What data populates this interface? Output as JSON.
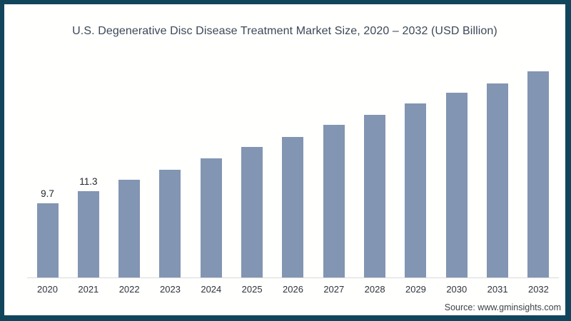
{
  "frame": {
    "border_color": "#11455c",
    "background": "#fffffe"
  },
  "title": "U.S. Degenerative Disc Disease Treatment Market Size, 2020 – 2032 (USD Billion)",
  "source": "Source: www.gminsights.com",
  "chart_data": {
    "type": "bar",
    "title": "U.S. Degenerative Disc Disease Treatment Market Size, 2020 – 2032 (USD Billion)",
    "categories": [
      "2020",
      "2021",
      "2022",
      "2023",
      "2024",
      "2025",
      "2026",
      "2027",
      "2028",
      "2029",
      "2030",
      "2031",
      "2032"
    ],
    "values": [
      9.7,
      11.3,
      12.7,
      14.0,
      15.5,
      17.0,
      18.3,
      19.9,
      21.2,
      22.7,
      24.1,
      25.3,
      26.9
    ],
    "data_labels": [
      "9.7",
      "11.3",
      "",
      "",
      "",
      "",
      "",
      "",
      "",
      "",
      "",
      "",
      ""
    ],
    "xlabel": "",
    "ylabel": "",
    "ylim": [
      0,
      28
    ],
    "grid": false,
    "legend": false,
    "bar_color": "#8295b2",
    "axis_line_color": "#d9d9d9",
    "source": "Source: www.gminsights.com"
  }
}
